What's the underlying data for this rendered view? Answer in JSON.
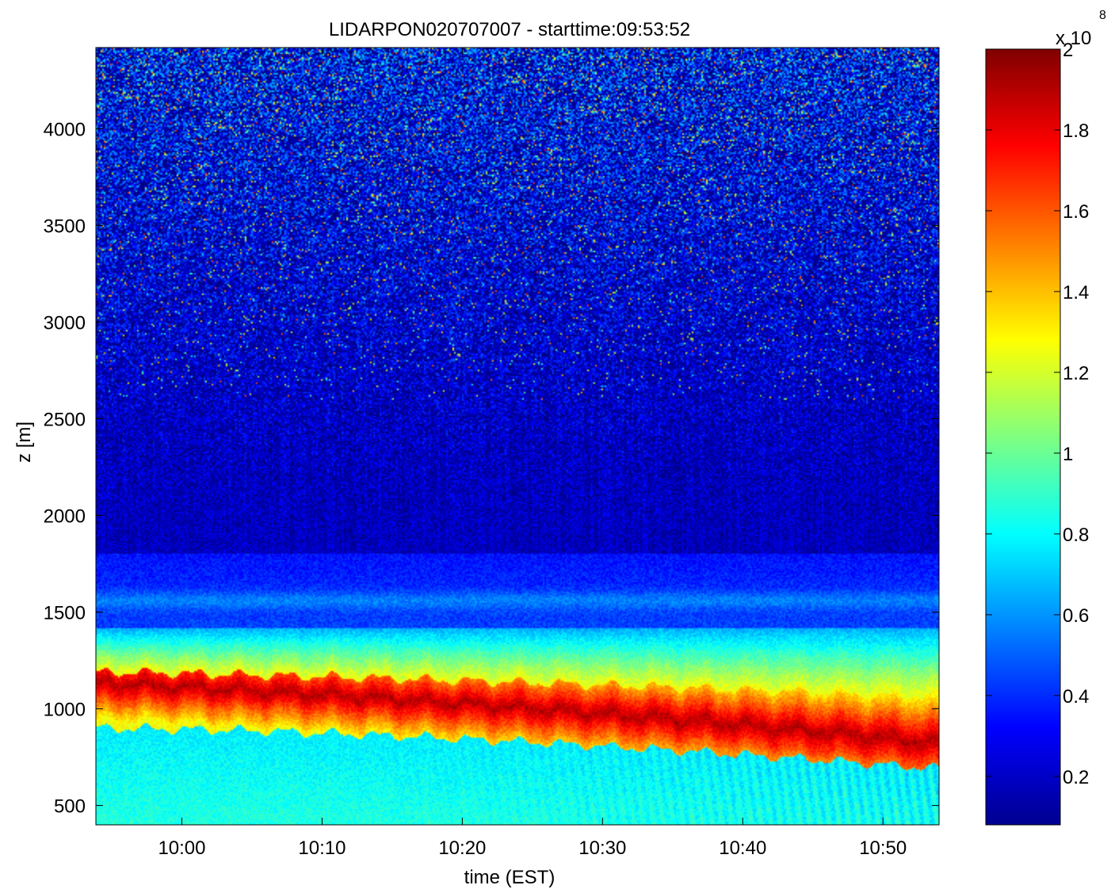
{
  "chart_data": {
    "type": "heatmap",
    "title": "LIDARPON020707007 - starttime:09:53:52",
    "xlabel": "time (EST)",
    "ylabel": "z [m]",
    "x_ticks": [
      "10:00",
      "10:10",
      "10:20",
      "10:30",
      "10:40",
      "10:50"
    ],
    "x_tick_minutes_after_10": [
      0,
      10,
      20,
      30,
      40,
      50
    ],
    "xlim_minutes_after_10": [
      -6.13,
      54
    ],
    "y_ticks": [
      500,
      1000,
      1500,
      2000,
      2500,
      3000,
      3500,
      4000
    ],
    "ylim": [
      400,
      4420
    ],
    "colorbar": {
      "ticks": [
        "0.2",
        "0.4",
        "0.6",
        "0.8",
        "1",
        "1.2",
        "1.4",
        "1.6",
        "1.8",
        "2"
      ],
      "tick_values": [
        0.2,
        0.4,
        0.6,
        0.8,
        1.0,
        1.2,
        1.4,
        1.6,
        1.8,
        2.0
      ],
      "range": [
        0.08,
        2.0
      ],
      "multiplier": "x 10",
      "exponent": "8",
      "colormap": "jet"
    },
    "layers": [
      {
        "name": "near-surface mixed layer",
        "z_range": [
          400,
          850
        ],
        "value": 0.8
      },
      {
        "name": "dense aerosol layer (descending)",
        "z_range_start": [
          940,
          1200
        ],
        "z_range_end": [
          700,
          900
        ],
        "value": 1.9
      },
      {
        "name": "transition",
        "z_range": [
          1200,
          1400
        ],
        "value": 0.6
      },
      {
        "name": "thin elevated layer",
        "z": 1560,
        "value": 0.65
      },
      {
        "name": "free troposphere",
        "z_range": [
          1800,
          4420
        ],
        "value": 0.2
      }
    ]
  }
}
